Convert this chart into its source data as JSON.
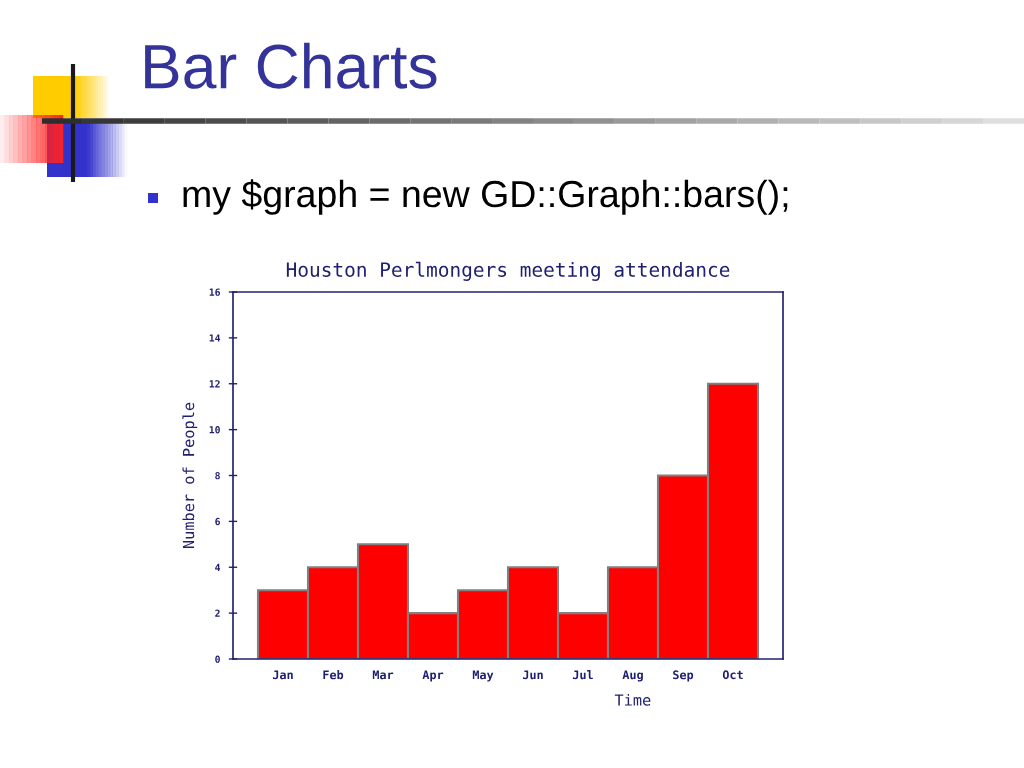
{
  "chart_data": {
    "type": "bar",
    "title": "Houston Perlmongers meeting attendance",
    "xlabel": "Time",
    "ylabel": "Number of People",
    "categories": [
      "Jan",
      "Feb",
      "Mar",
      "Apr",
      "May",
      "Jun",
      "Jul",
      "Aug",
      "Sep",
      "Oct"
    ],
    "values": [
      3,
      4,
      5,
      2,
      3,
      4,
      2,
      4,
      8,
      12
    ],
    "color": "#ff0000",
    "ylim": [
      0,
      16
    ],
    "yticks": [
      0,
      2,
      4,
      6,
      8,
      10,
      12,
      14,
      16
    ],
    "annotations": [
      "Bar Charts",
      "my $graph = new GD::Graph::bars();"
    ]
  }
}
